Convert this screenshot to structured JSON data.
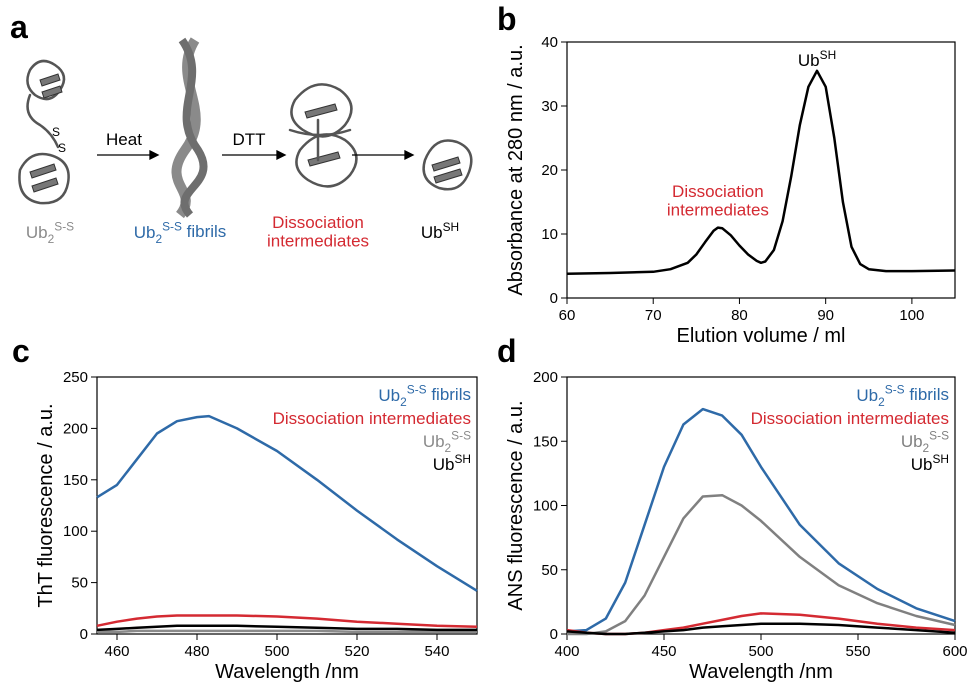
{
  "schematic": {
    "panel_label": "a",
    "disulfide": [
      "S",
      "S"
    ],
    "step1": "Heat",
    "step2": "DTT",
    "labels": [
      {
        "color": "#8a8a8a",
        "runs": [
          {
            "text": "Ub"
          },
          {
            "text": "2",
            "sub": true
          },
          {
            "text": "S-S",
            "sup": true
          }
        ]
      },
      {
        "color": "#2e6aa8",
        "runs": [
          {
            "text": "Ub"
          },
          {
            "text": "2",
            "sub": true
          },
          {
            "text": "S-S",
            "sup": true
          },
          {
            "text": " fibrils"
          }
        ]
      },
      {
        "color": "#d42a32",
        "lines": [
          "Dissociation",
          "intermediates"
        ]
      },
      {
        "color": "#000000",
        "runs": [
          {
            "text": "Ub"
          },
          {
            "text": "SH",
            "sup": true
          }
        ]
      }
    ]
  },
  "chart_data": [
    {
      "type": "line",
      "panel_label": "b",
      "y_label": "Absorbance at 280 nm / a.u.",
      "x_label": "Elution volume / ml",
      "xlim": [
        60,
        105
      ],
      "xticks": [
        60,
        70,
        80,
        90,
        100
      ],
      "ylim": [
        0,
        40
      ],
      "yticks": [
        0,
        10,
        20,
        30,
        40
      ],
      "x": [
        60,
        65,
        70,
        72,
        74,
        75,
        76,
        77,
        77.5,
        78,
        79,
        80,
        81,
        82,
        82.5,
        83,
        84,
        85,
        86,
        87,
        88,
        89,
        90,
        91,
        92,
        93,
        94,
        95,
        97,
        100,
        105
      ],
      "series": [
        {
          "color": "#000000",
          "values": [
            3.8,
            3.9,
            4.1,
            4.5,
            5.5,
            6.8,
            8.7,
            10.5,
            11,
            10.9,
            9.8,
            8.2,
            6.8,
            5.8,
            5.5,
            5.7,
            7.5,
            12,
            19,
            27,
            33,
            35.5,
            33,
            25,
            15,
            8,
            5.3,
            4.5,
            4.2,
            4.2,
            4.3
          ]
        }
      ],
      "annotations": [
        {
          "color": "#000000",
          "runs": [
            {
              "text": "Ub"
            },
            {
              "text": "SH",
              "sup": true
            }
          ]
        },
        {
          "color": "#d42a32",
          "lines": [
            "Dissociation",
            "intermediates"
          ]
        }
      ]
    },
    {
      "type": "line",
      "panel_label": "c",
      "y_label": "ThT fluorescence / a.u.",
      "x_label": "Wavelength /nm",
      "xlim": [
        455,
        550
      ],
      "xticks": [
        460,
        480,
        500,
        520,
        540
      ],
      "ylim": [
        0,
        250
      ],
      "yticks": [
        0,
        50,
        100,
        150,
        200,
        250
      ],
      "x": [
        455,
        460,
        465,
        470,
        475,
        480,
        483,
        490,
        500,
        510,
        520,
        530,
        540,
        550
      ],
      "series": [
        {
          "name": [
            {
              "text": "Ub"
            },
            {
              "text": "2",
              "sub": true
            },
            {
              "text": "S-S",
              "sup": true
            },
            {
              "text": " fibrils"
            }
          ],
          "color": "#2e6aa8",
          "values": [
            133,
            145,
            170,
            195,
            207,
            211,
            212,
            200,
            178,
            150,
            120,
            92,
            66,
            42
          ]
        },
        {
          "name": [
            {
              "text": "Dissociation intermediates"
            }
          ],
          "color": "#d42a32",
          "values": [
            8,
            12,
            15,
            17,
            18,
            18,
            18,
            18,
            17,
            15,
            12,
            10,
            8,
            7
          ]
        },
        {
          "name": [
            {
              "text": "Ub"
            },
            {
              "text": "2",
              "sub": true
            },
            {
              "text": "S-S",
              "sup": true
            }
          ],
          "color": "#8a8a8a",
          "values": [
            2,
            2,
            3,
            3,
            3,
            3,
            3,
            3,
            3,
            3,
            2,
            2,
            2,
            2
          ]
        },
        {
          "name": [
            {
              "text": "Ub"
            },
            {
              "text": "SH",
              "sup": true
            }
          ],
          "color": "#000000",
          "values": [
            4,
            5,
            6,
            7,
            8,
            8,
            8,
            8,
            7,
            6,
            5,
            5,
            4,
            4
          ]
        }
      ]
    },
    {
      "type": "line",
      "panel_label": "d",
      "y_label": "ANS fluorescence / a.u.",
      "x_label": "Wavelength /nm",
      "xlim": [
        400,
        600
      ],
      "xticks": [
        400,
        450,
        500,
        550,
        600
      ],
      "ylim": [
        0,
        200
      ],
      "yticks": [
        0,
        50,
        100,
        150,
        200
      ],
      "x": [
        400,
        410,
        420,
        430,
        440,
        450,
        460,
        470,
        480,
        490,
        500,
        520,
        540,
        560,
        580,
        600
      ],
      "series": [
        {
          "name": [
            {
              "text": "Ub"
            },
            {
              "text": "2",
              "sub": true
            },
            {
              "text": "S-S",
              "sup": true
            },
            {
              "text": " fibrils"
            }
          ],
          "color": "#2e6aa8",
          "values": [
            2,
            3,
            12,
            40,
            85,
            130,
            163,
            175,
            170,
            155,
            130,
            85,
            55,
            35,
            20,
            10
          ]
        },
        {
          "name": [
            {
              "text": "Dissociation intermediates"
            }
          ],
          "color": "#d42a32",
          "values": [
            3,
            1,
            0,
            0,
            1,
            3,
            5,
            8,
            11,
            14,
            16,
            15,
            12,
            8,
            5,
            3
          ]
        },
        {
          "name": [
            {
              "text": "Ub"
            },
            {
              "text": "2",
              "sub": true
            },
            {
              "text": "S-S",
              "sup": true
            }
          ],
          "color": "#808080",
          "values": [
            0,
            0,
            2,
            10,
            30,
            60,
            90,
            107,
            108,
            100,
            88,
            60,
            38,
            24,
            14,
            7
          ]
        },
        {
          "name": [
            {
              "text": "Ub"
            },
            {
              "text": "SH",
              "sup": true
            }
          ],
          "color": "#000000",
          "values": [
            2,
            1,
            0,
            0,
            1,
            2,
            3,
            5,
            6,
            7,
            8,
            8,
            7,
            5,
            3,
            1
          ]
        }
      ]
    }
  ]
}
